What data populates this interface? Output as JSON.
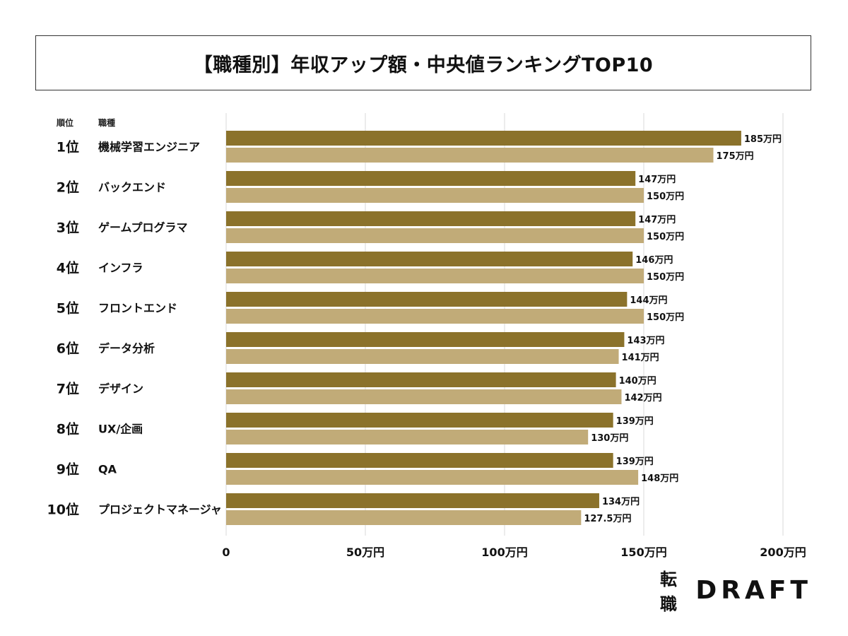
{
  "title": "【職種別】年収アップ額・中央値ランキングTOP10",
  "headers": {
    "rank": "順位",
    "job": "職種"
  },
  "logo": {
    "kanji": "転職",
    "word": "DRAFT"
  },
  "colors": {
    "series1": "#8b722b",
    "series2": "#c1ab78",
    "grid": "#d9d9d9"
  },
  "chart_data": {
    "type": "bar",
    "orientation": "horizontal",
    "ranks": [
      "1位",
      "2位",
      "3位",
      "4位",
      "5位",
      "6位",
      "7位",
      "8位",
      "9位",
      "10位"
    ],
    "categories": [
      "機械学習エンジニア",
      "バックエンド",
      "ゲームプログラマ",
      "インフラ",
      "フロントエンド",
      "データ分析",
      "デザイン",
      "UX/企画",
      "QA",
      "プロジェクトマネージャ"
    ],
    "series": [
      {
        "values": [
          185,
          147,
          147,
          146,
          144,
          143,
          140,
          139,
          139,
          134
        ],
        "labels": [
          "185万円",
          "147万円",
          "147万円",
          "146万円",
          "144万円",
          "143万円",
          "140万円",
          "139万円",
          "139万円",
          "134万円"
        ]
      },
      {
        "values": [
          175,
          150,
          150,
          150,
          150,
          141,
          142,
          130,
          148,
          127.5
        ],
        "labels": [
          "175万円",
          "150万円",
          "150万円",
          "150万円",
          "150万円",
          "141万円",
          "142万円",
          "130万円",
          "148万円",
          "127.5万円"
        ]
      }
    ],
    "xlim": [
      0,
      200
    ],
    "xticks": [
      0,
      50,
      100,
      150,
      200
    ],
    "xtick_labels": [
      "0",
      "50万円",
      "100万円",
      "150万円",
      "200万円"
    ],
    "grid": true,
    "legend": "none"
  }
}
